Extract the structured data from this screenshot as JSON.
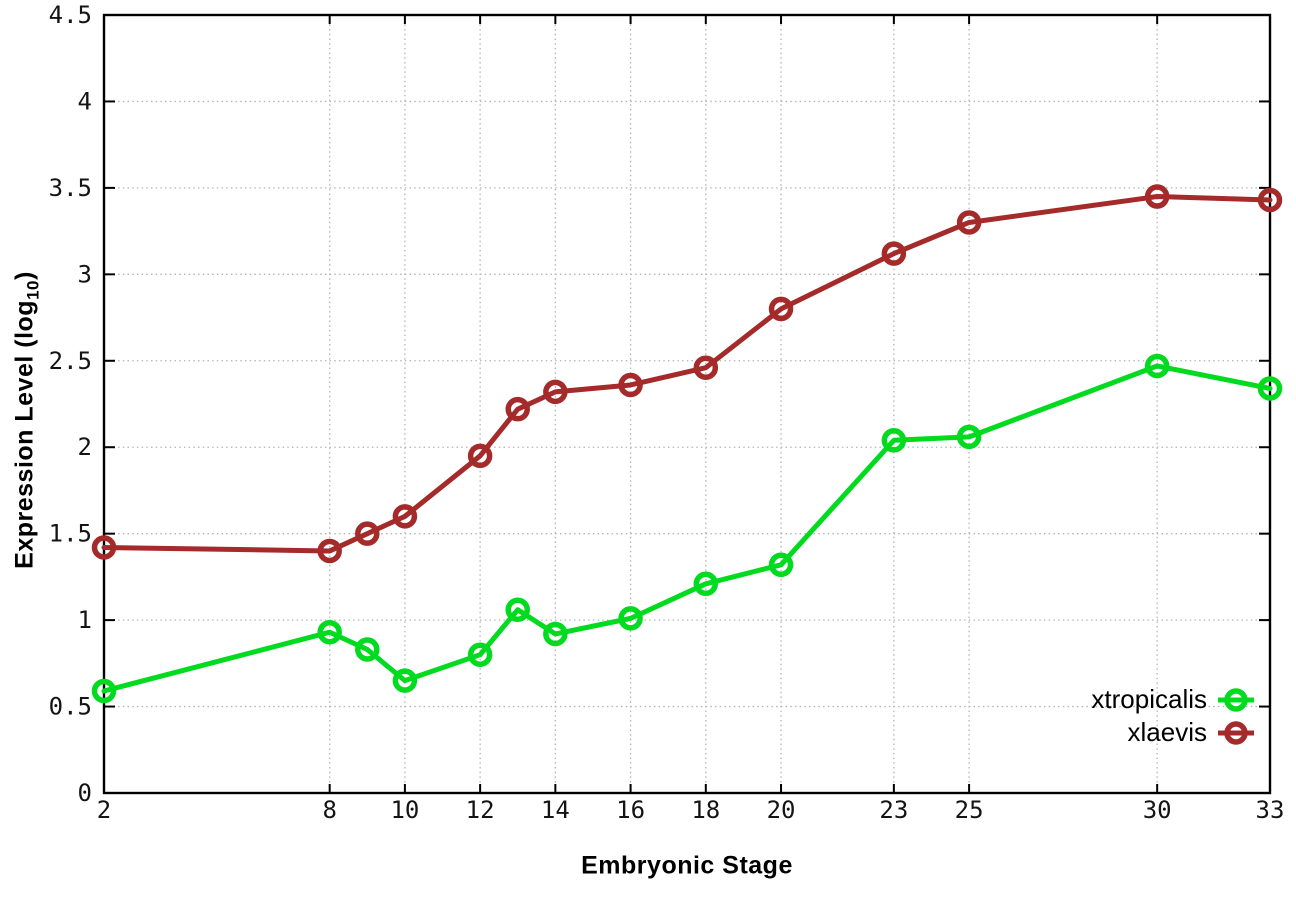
{
  "labels": {
    "y_title_prefix": "Expression Level (log",
    "y_title_sub": "10",
    "y_title_suffix": ")",
    "x_title": "Embryonic Stage"
  },
  "colors": {
    "background": "#ffffff",
    "border": "#000000",
    "grid": "#b4b4b4",
    "tick_text": "#141414",
    "xtropicalis": "#00db20",
    "xlaevis": "#a52a2a"
  },
  "chart_data": {
    "type": "line",
    "title": "",
    "xlabel": "Embryonic Stage",
    "ylabel": "Expression Level (log10)",
    "xlim": [
      2,
      33
    ],
    "ylim": [
      0,
      4.5
    ],
    "grid": true,
    "legend_position": "bottom-right",
    "x": [
      2,
      8,
      9,
      10,
      12,
      13,
      14,
      16,
      18,
      20,
      23,
      25,
      30,
      33
    ],
    "x_ticks": [
      {
        "value": 2,
        "label": "2"
      },
      {
        "value": 8,
        "label": "8"
      },
      {
        "value": 10,
        "label": "10"
      },
      {
        "value": 12,
        "label": "12"
      },
      {
        "value": 14,
        "label": "14"
      },
      {
        "value": 16,
        "label": "16"
      },
      {
        "value": 18,
        "label": "18"
      },
      {
        "value": 20,
        "label": "20"
      },
      {
        "value": 23,
        "label": "23"
      },
      {
        "value": 25,
        "label": "25"
      },
      {
        "value": 30,
        "label": "30"
      },
      {
        "value": 33,
        "label": "33"
      }
    ],
    "y_ticks": [
      {
        "value": 0,
        "label": "0"
      },
      {
        "value": 0.5,
        "label": "0.5"
      },
      {
        "value": 1,
        "label": "1"
      },
      {
        "value": 1.5,
        "label": "1.5"
      },
      {
        "value": 2,
        "label": "2"
      },
      {
        "value": 2.5,
        "label": "2.5"
      },
      {
        "value": 3,
        "label": "3"
      },
      {
        "value": 3.5,
        "label": "3.5"
      },
      {
        "value": 4,
        "label": "4"
      },
      {
        "value": 4.5,
        "label": "4.5"
      }
    ],
    "series": [
      {
        "name": "xtropicalis",
        "color": "#00db20",
        "values": [
          0.59,
          0.93,
          0.83,
          0.65,
          0.8,
          1.06,
          0.92,
          1.01,
          1.21,
          1.32,
          2.04,
          2.06,
          2.47,
          2.34
        ]
      },
      {
        "name": "xlaevis",
        "color": "#a52a2a",
        "values": [
          1.42,
          1.4,
          1.5,
          1.6,
          1.95,
          2.22,
          2.32,
          2.36,
          2.46,
          2.8,
          3.12,
          3.3,
          3.45,
          3.43
        ]
      }
    ]
  }
}
